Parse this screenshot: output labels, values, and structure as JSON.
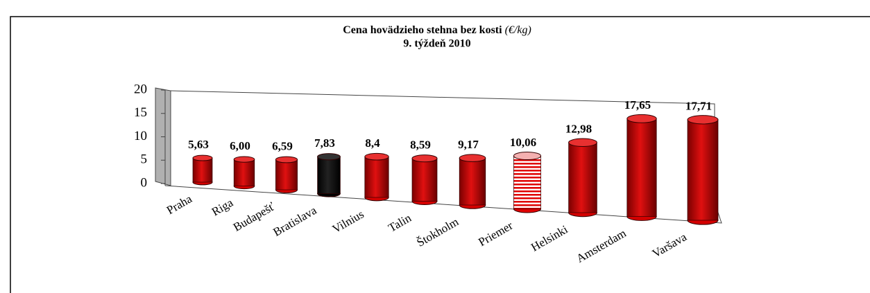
{
  "chart_data": {
    "type": "bar3d",
    "title": "Cena hovädzieho stehna bez kosti",
    "title_unit": "(€/kg)",
    "subtitle": "9. týždeň 2010",
    "categories": [
      "Praha",
      "Riga",
      "Budapešť",
      "Bratislava",
      "Vilnius",
      "Talin",
      "Štokholm",
      "Priemer",
      "Helsinki",
      "Amsterdam",
      "Varšava"
    ],
    "values": [
      5.63,
      6.0,
      6.59,
      7.83,
      8.4,
      8.59,
      9.17,
      10.06,
      12.98,
      17.65,
      17.71
    ],
    "value_labels": [
      "5,63",
      "6,00",
      "6,59",
      "7,83",
      "8,4",
      "8,59",
      "9,17",
      "10,06",
      "12,98",
      "17,65",
      "17,71"
    ],
    "colors": [
      "#d40000",
      "#d40000",
      "#d40000",
      "#000000",
      "#d40000",
      "#d40000",
      "#d40000",
      "#e00000",
      "#d40000",
      "#d40000",
      "#d40000"
    ],
    "striped": [
      false,
      false,
      false,
      false,
      false,
      false,
      false,
      true,
      false,
      false,
      false
    ],
    "ylim": [
      0,
      20
    ],
    "yticks": [
      0,
      5,
      10,
      15,
      20
    ]
  }
}
